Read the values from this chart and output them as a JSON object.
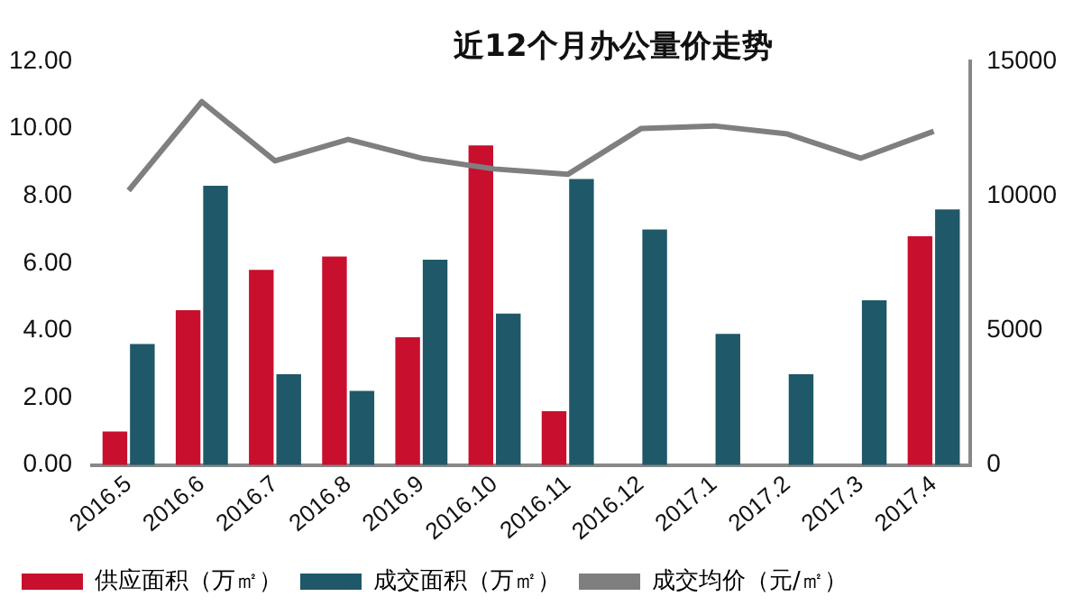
{
  "chart_data": {
    "type": "bar",
    "title": "近12个月办公量价走势",
    "categories": [
      "2016.5",
      "2016.6",
      "2016.7",
      "2016.8",
      "2016.9",
      "2016.10",
      "2016.11",
      "2016.12",
      "2017.1",
      "2017.2",
      "2017.3",
      "2017.4"
    ],
    "series": [
      {
        "name": "供应面积（万㎡）",
        "color": "#c8102e",
        "values": [
          1.0,
          4.6,
          5.8,
          6.2,
          3.8,
          9.5,
          1.6,
          null,
          null,
          null,
          null,
          6.8
        ]
      },
      {
        "name": "成交面积（万㎡）",
        "color": "#1f5868",
        "values": [
          3.6,
          8.3,
          2.7,
          2.2,
          6.1,
          4.5,
          8.5,
          7.0,
          3.9,
          2.7,
          4.9,
          7.6
        ]
      },
      {
        "name": "成交均价（元/㎡）",
        "type": "line",
        "axis": "y2",
        "color": "#7f7f7f",
        "values": [
          10200,
          13500,
          11300,
          12100,
          11400,
          11000,
          10800,
          12500,
          12600,
          12300,
          11400,
          12400
        ]
      }
    ],
    "ylim": [
      0,
      12
    ],
    "yticks": [
      {
        "value": 0,
        "label": "0.00"
      },
      {
        "value": 2,
        "label": "2.00"
      },
      {
        "value": 4,
        "label": "4.00"
      },
      {
        "value": 6,
        "label": "6.00"
      },
      {
        "value": 8,
        "label": "8.00"
      },
      {
        "value": 10,
        "label": "10.00"
      },
      {
        "value": 12,
        "label": "12.00"
      }
    ],
    "y2lim": [
      0,
      15000
    ],
    "y2ticks": [
      0,
      5000,
      10000,
      15000
    ],
    "grid": false,
    "legend": "bottom",
    "marker": "none",
    "line_style": "solid"
  }
}
